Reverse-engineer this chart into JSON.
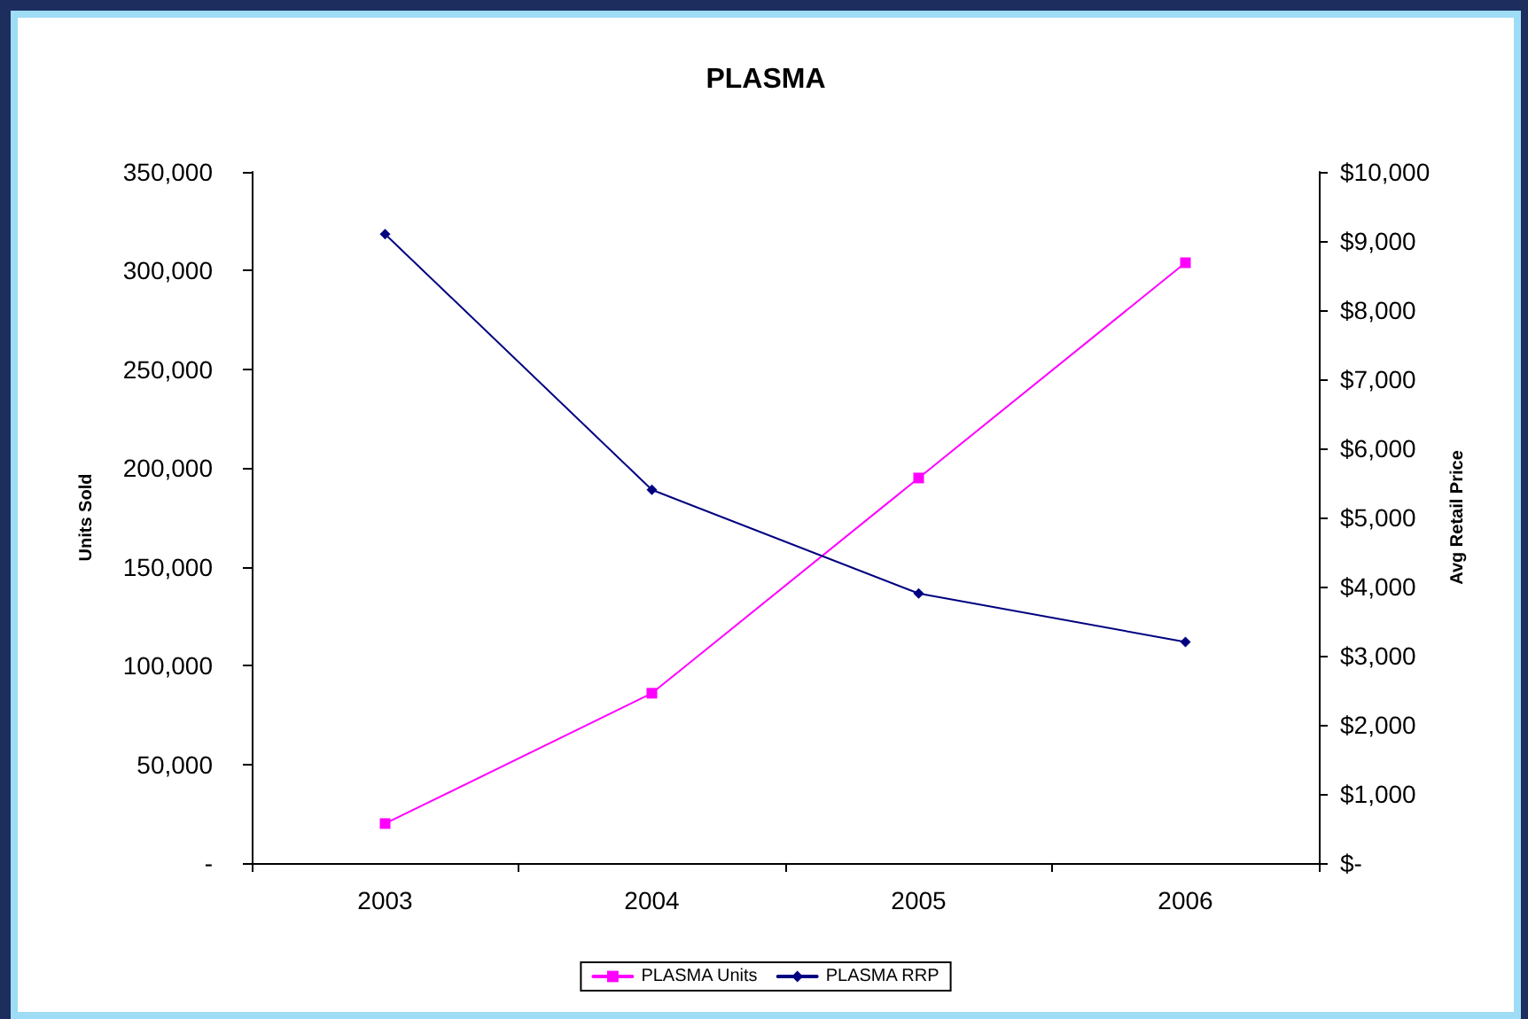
{
  "chart_data": {
    "type": "line",
    "title": "PLASMA",
    "ylabel": "Units Sold",
    "y2label": "Avg Retail Price",
    "categories": [
      "2003",
      "2004",
      "2005",
      "2006"
    ],
    "series": [
      {
        "name": "PLASMA Units",
        "color": "#ff00ff",
        "marker": "square",
        "values": [
          20000,
          86000,
          195000,
          304000
        ]
      },
      {
        "name": "PLASMA RRP",
        "color": "#000080",
        "marker": "diamond",
        "axis": "y2",
        "values": [
          9100,
          5400,
          3900,
          3200
        ]
      }
    ],
    "ylim": [
      0,
      350000
    ],
    "yticks": [
      {
        "value": 0,
        "label": "-"
      },
      {
        "value": 50000,
        "label": "50,000"
      },
      {
        "value": 100000,
        "label": "100,000"
      },
      {
        "value": 150000,
        "label": "150,000"
      },
      {
        "value": 200000,
        "label": "200,000"
      },
      {
        "value": 250000,
        "label": "250,000"
      },
      {
        "value": 300000,
        "label": "300,000"
      },
      {
        "value": 350000,
        "label": "350,000"
      }
    ],
    "y2lim": [
      0,
      10000
    ],
    "y2ticks": [
      {
        "value": 0,
        "label": "$-"
      },
      {
        "value": 1000,
        "label": "$1,000"
      },
      {
        "value": 2000,
        "label": "$2,000"
      },
      {
        "value": 3000,
        "label": "$3,000"
      },
      {
        "value": 4000,
        "label": "$4,000"
      },
      {
        "value": 5000,
        "label": "$5,000"
      },
      {
        "value": 6000,
        "label": "$6,000"
      },
      {
        "value": 7000,
        "label": "$7,000"
      },
      {
        "value": 8000,
        "label": "$8,000"
      },
      {
        "value": 9000,
        "label": "$9,000"
      },
      {
        "value": 10000,
        "label": "$10,000"
      }
    ],
    "grid": false,
    "legend": "bottom",
    "line_style": "solid"
  }
}
